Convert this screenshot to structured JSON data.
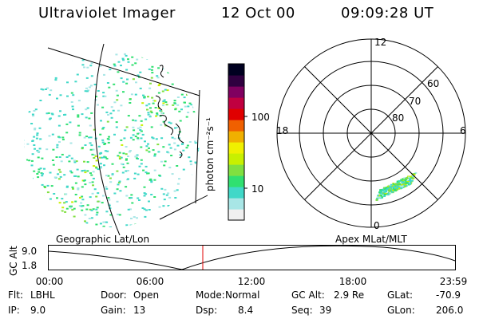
{
  "header": {
    "title": "Ultraviolet Imager",
    "date": "12 Oct 00",
    "time": "09:09:28 UT"
  },
  "colorbar": {
    "unit": "photon cm⁻²s⁻¹",
    "tick_labels": [
      "100",
      "10"
    ],
    "colors": [
      "#f0f0f0",
      "#a8e6e6",
      "#40d8c8",
      "#30e070",
      "#80e040",
      "#c8f000",
      "#f0f000",
      "#f0b000",
      "#f06000",
      "#e00000",
      "#c00040",
      "#800060",
      "#300040",
      "#000020"
    ]
  },
  "left_panel": {
    "caption": "Geographic Lat/Lon"
  },
  "right_panel": {
    "caption": "Apex MLat/MLT",
    "mlt_labels": {
      "top": "12",
      "left": "18",
      "right": "6",
      "bottom": "0"
    },
    "mlat_labels": [
      "60",
      "70",
      "80"
    ]
  },
  "altitude_plot": {
    "axis_label": "GC Alt",
    "y_ticks": [
      "9.0",
      "1.8"
    ],
    "x_ticks": [
      "00:00",
      "06:00",
      "12:00",
      "18:00",
      "23:59"
    ],
    "marker_color": "#e00000"
  },
  "info": {
    "flt_label": "Flt:",
    "flt_value": "LBHL",
    "ip_label": "IP:",
    "ip_value": "9.0",
    "door_label": "Door:",
    "door_value": "Open",
    "gain_label": "Gain:",
    "gain_value": "13",
    "mode_label": "Mode:",
    "mode_value": "Normal",
    "dsp_label": "Dsp:",
    "dsp_value": "8.4",
    "gcalt_label": "GC Alt:",
    "gcalt_value": "2.9 Re",
    "seq_label": "Seq:",
    "seq_value": "39",
    "glat_label": "GLat:",
    "glat_value": "-70.9",
    "glon_label": "GLon:",
    "glon_value": "206.0"
  }
}
